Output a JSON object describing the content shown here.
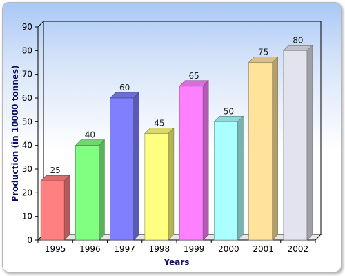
{
  "chart_data": {
    "type": "bar",
    "title": "",
    "xlabel": "Years",
    "ylabel": "Production (in 10000 tonnes)",
    "categories": [
      "1995",
      "1996",
      "1997",
      "1998",
      "1999",
      "2000",
      "2001",
      "2002"
    ],
    "values": [
      25,
      40,
      60,
      45,
      65,
      50,
      75,
      80
    ],
    "ylim": [
      0,
      90
    ],
    "yticks": [
      0,
      10,
      20,
      30,
      40,
      50,
      60,
      70,
      80,
      90
    ],
    "grid": false,
    "legend": "none",
    "bar_style": "3d",
    "colors": [
      "#ff8080",
      "#80ff80",
      "#8080ff",
      "#ffff80",
      "#ff80ff",
      "#aaffff",
      "#ffe39a",
      "#e3e3ee"
    ],
    "axis_color": "#000000",
    "label_color": "#0b0b6b"
  }
}
